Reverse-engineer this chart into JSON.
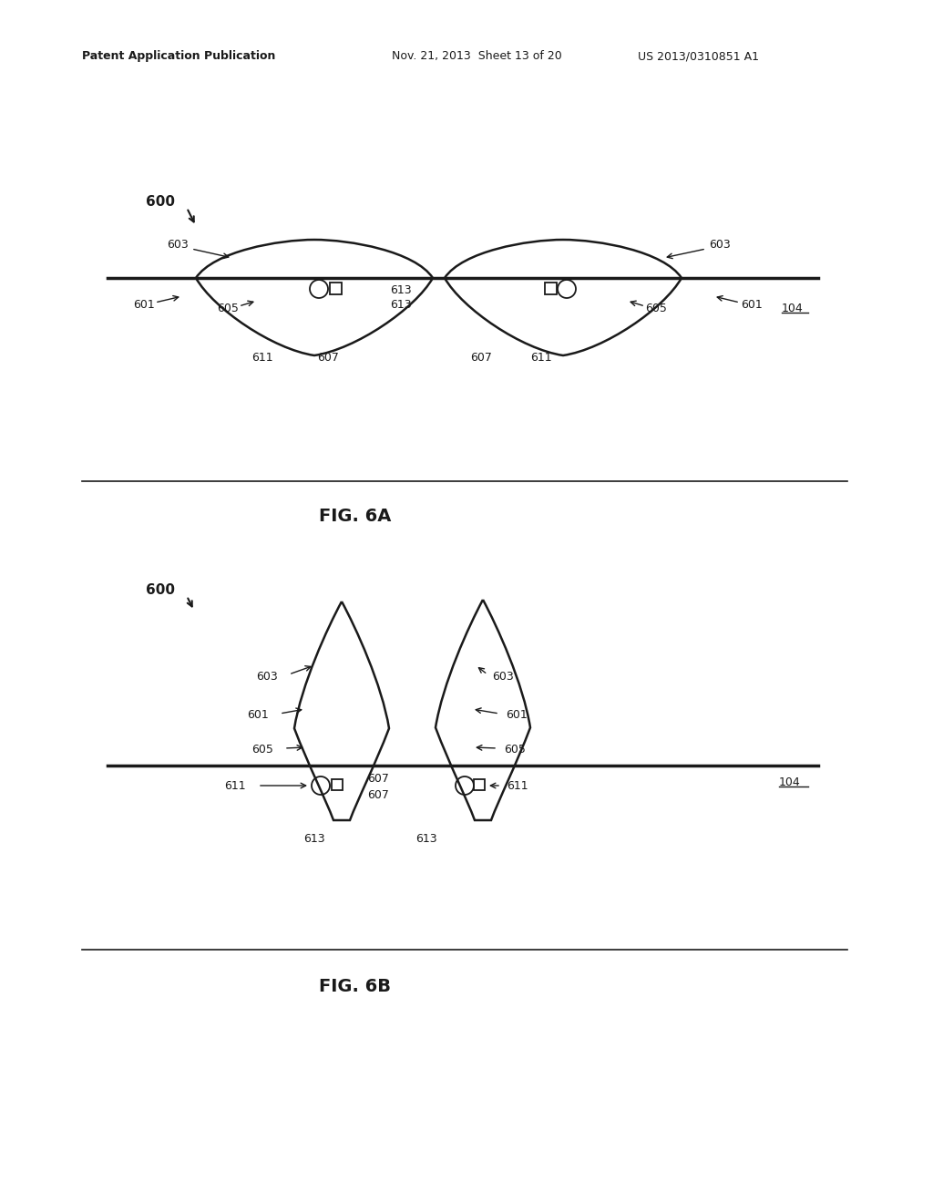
{
  "bg_color": "#ffffff",
  "line_color": "#1a1a1a",
  "header_left": "Patent Application Publication",
  "header_mid": "Nov. 21, 2013  Sheet 13 of 20",
  "header_right": "US 2013/0310851 A1",
  "fig6a_label": "FIG. 6A",
  "fig6b_label": "FIG. 6B",
  "label_600": "600",
  "label_601": "601",
  "label_603": "603",
  "label_605": "605",
  "label_607": "607",
  "label_611": "611",
  "label_613": "613",
  "label_104": "104"
}
